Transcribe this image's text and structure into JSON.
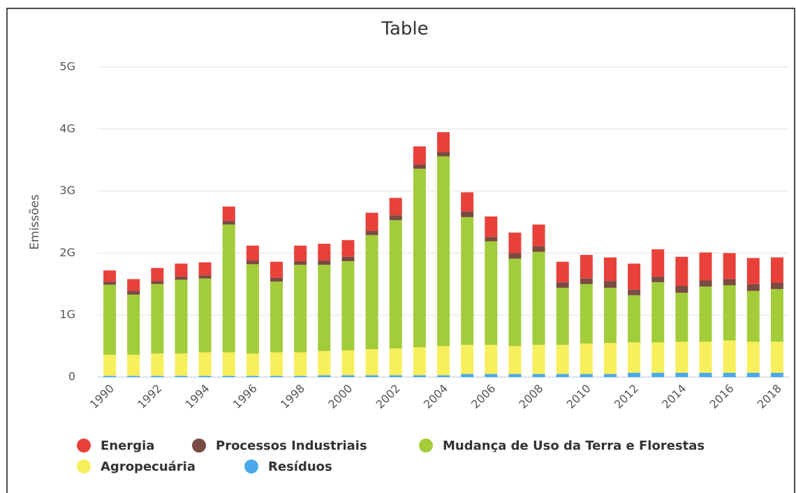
{
  "chart_data": {
    "type": "stacked_bar",
    "title": "Table",
    "y_label": "Emissões",
    "categories": [
      "1990",
      null,
      "1992",
      null,
      "1994",
      null,
      "1996",
      null,
      "1998",
      null,
      "2000",
      null,
      "2002",
      null,
      "2004",
      null,
      "2006",
      null,
      "2008",
      null,
      "2010",
      null,
      "2012",
      null,
      "2014",
      null,
      "2016",
      null,
      "2018"
    ],
    "series": [
      {
        "name": "Energia",
        "color": "#e8413a",
        "values": [
          180000000,
          190000000,
          210000000,
          210000000,
          210000000,
          230000000,
          240000000,
          260000000,
          250000000,
          270000000,
          270000000,
          290000000,
          280000000,
          290000000,
          320000000,
          310000000,
          330000000,
          330000000,
          350000000,
          330000000,
          380000000,
          380000000,
          420000000,
          440000000,
          470000000,
          450000000,
          420000000,
          420000000,
          410000000
        ]
      },
      {
        "name": "Processos Industriais",
        "color": "#7a4b42",
        "values": [
          50000000,
          60000000,
          50000000,
          50000000,
          50000000,
          60000000,
          60000000,
          60000000,
          60000000,
          70000000,
          70000000,
          70000000,
          80000000,
          70000000,
          70000000,
          90000000,
          70000000,
          90000000,
          90000000,
          90000000,
          90000000,
          110000000,
          90000000,
          90000000,
          110000000,
          100000000,
          100000000,
          110000000,
          100000000
        ]
      },
      {
        "name": "Mudança de Uso da Terra e Florestas",
        "color": "#a3cc3a",
        "values": [
          1130000000,
          970000000,
          1120000000,
          1190000000,
          1190000000,
          2060000000,
          1440000000,
          1140000000,
          1410000000,
          1390000000,
          1440000000,
          1840000000,
          2070000000,
          2880000000,
          3060000000,
          2060000000,
          1670000000,
          1410000000,
          1500000000,
          920000000,
          960000000,
          890000000,
          760000000,
          970000000,
          790000000,
          890000000,
          890000000,
          820000000,
          850000000
        ]
      },
      {
        "name": "Agropecuária",
        "color": "#f8ef5c",
        "values": [
          340000000,
          340000000,
          360000000,
          360000000,
          380000000,
          380000000,
          360000000,
          380000000,
          380000000,
          390000000,
          400000000,
          420000000,
          430000000,
          450000000,
          470000000,
          470000000,
          470000000,
          450000000,
          470000000,
          470000000,
          490000000,
          500000000,
          490000000,
          490000000,
          500000000,
          500000000,
          520000000,
          500000000,
          500000000
        ]
      },
      {
        "name": "Resíduos",
        "color": "#4aa9ea",
        "values": [
          20000000,
          20000000,
          20000000,
          20000000,
          20000000,
          20000000,
          20000000,
          20000000,
          20000000,
          30000000,
          30000000,
          30000000,
          30000000,
          30000000,
          30000000,
          50000000,
          50000000,
          50000000,
          50000000,
          50000000,
          50000000,
          50000000,
          70000000,
          70000000,
          70000000,
          70000000,
          70000000,
          70000000,
          70000000
        ]
      }
    ],
    "ylim": [
      0,
      5000000000
    ],
    "yticks": [
      0,
      {
        "value": 1000000000,
        "label": "1G"
      },
      {
        "value": 2000000000,
        "label": "2G"
      },
      {
        "value": 3000000000,
        "label": "3G"
      },
      {
        "value": 4000000000,
        "label": "4G"
      },
      {
        "value": 5000000000,
        "label": "5G"
      }
    ],
    "grid": true,
    "legend": "bottom-left"
  }
}
